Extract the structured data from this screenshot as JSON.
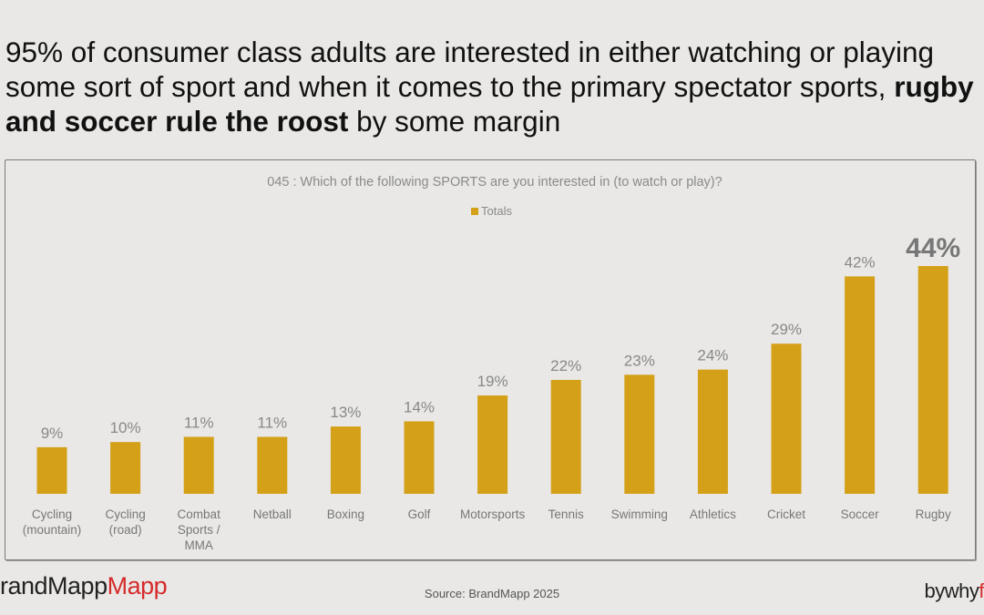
{
  "headline": {
    "part1": "95% of consumer class adults are interested in either watching or playing some sort of sport and when it comes to the primary spectator sports,",
    "bold": "rugby and soccer rule the roost",
    "part2": "by some margin"
  },
  "chart_data": {
    "type": "bar",
    "title": "045 : Which of the following SPORTS are you interested in (to watch or play)?",
    "series": [
      {
        "name": "Totals",
        "values": [
          9,
          10,
          11,
          11,
          13,
          14,
          19,
          22,
          23,
          24,
          29,
          42,
          44
        ]
      }
    ],
    "categories": [
      "Cycling (mountain)",
      "Cycling (road)",
      "Combat Sports / MMA",
      "Netball",
      "Boxing",
      "Golf",
      "Motorsports",
      "Tennis",
      "Swimming",
      "Athletics",
      "Cricket",
      "Soccer",
      "Rugby"
    ],
    "category_lines": [
      [
        "Cycling",
        "(mountain)"
      ],
      [
        "Cycling",
        "(road)"
      ],
      [
        "Combat",
        "Sports /",
        "MMA"
      ],
      [
        "Netball"
      ],
      [
        "Boxing"
      ],
      [
        "Golf"
      ],
      [
        "Motorsports"
      ],
      [
        "Tennis"
      ],
      [
        "Swimming"
      ],
      [
        "Athletics"
      ],
      [
        "Cricket"
      ],
      [
        "Soccer"
      ],
      [
        "Rugby"
      ]
    ],
    "value_labels": [
      "9%",
      "10%",
      "11%",
      "11%",
      "13%",
      "14%",
      "19%",
      "22%",
      "23%",
      "24%",
      "29%",
      "42%",
      "44%"
    ],
    "highlight_index": 12,
    "ylim": [
      0,
      44
    ],
    "grid": false,
    "legend_position": "top",
    "bar_color": "#d4a017"
  },
  "footer": {
    "logo_part1": "randMapp",
    "logo_part2": "Mapp",
    "source": "Source: BrandMapp 2025",
    "byline": "bywhy",
    "byline_accent": "f"
  }
}
